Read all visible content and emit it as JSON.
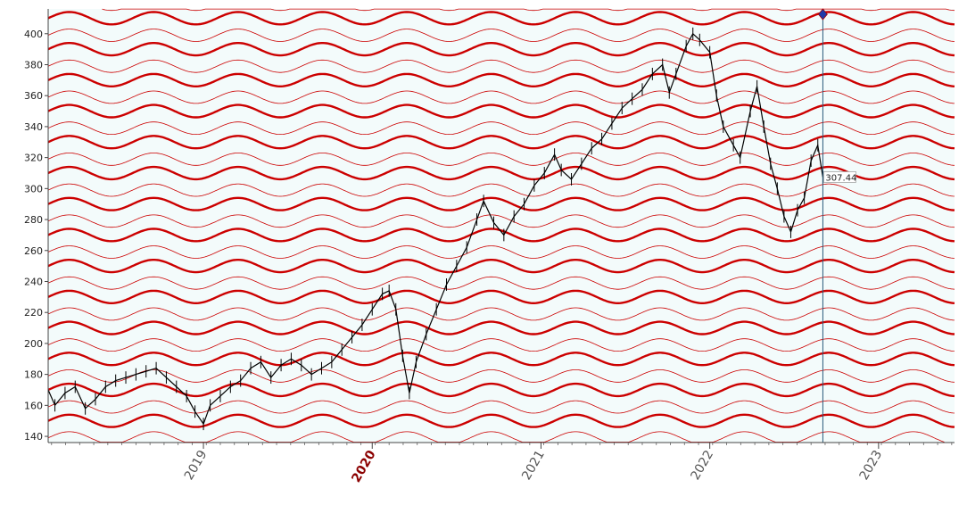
{
  "chart_data": {
    "type": "line",
    "title": "",
    "xlabel": "",
    "ylabel": "",
    "x_tick_labels": [
      "2019",
      "2020",
      "2021",
      "2022",
      "2023"
    ],
    "x_tick_highlight": "2020",
    "y_tick_labels": [
      "140",
      "160",
      "180",
      "200",
      "220",
      "240",
      "260",
      "280",
      "300",
      "320",
      "340",
      "360",
      "380",
      "400"
    ],
    "ylim": [
      136,
      416
    ],
    "xlim": [
      2018.08,
      2023.45
    ],
    "grid": false,
    "cursor": {
      "x": 2022.67,
      "value": 307.44,
      "label": "307.44"
    },
    "colors": {
      "background": "#f3fbfb",
      "price": "#000000",
      "wave": "#cc0000",
      "cursor": "#2a5a7a",
      "marker": "#1f3aa8"
    },
    "wave_overlay": {
      "description_levels_spacing": 20,
      "thick_every": 2,
      "amplitude": 4,
      "period_years": 0.5
    },
    "series": [
      {
        "values": [
          [
            2018.08,
            170
          ],
          [
            2018.12,
            160
          ],
          [
            2018.18,
            168
          ],
          [
            2018.24,
            172
          ],
          [
            2018.3,
            158
          ],
          [
            2018.36,
            164
          ],
          [
            2018.42,
            172
          ],
          [
            2018.48,
            176
          ],
          [
            2018.54,
            178
          ],
          [
            2018.6,
            180
          ],
          [
            2018.66,
            182
          ],
          [
            2018.72,
            184
          ],
          [
            2018.78,
            178
          ],
          [
            2018.84,
            172
          ],
          [
            2018.9,
            166
          ],
          [
            2018.95,
            156
          ],
          [
            2019.0,
            148
          ],
          [
            2019.04,
            160
          ],
          [
            2019.1,
            166
          ],
          [
            2019.16,
            172
          ],
          [
            2019.22,
            176
          ],
          [
            2019.28,
            184
          ],
          [
            2019.34,
            188
          ],
          [
            2019.4,
            178
          ],
          [
            2019.46,
            186
          ],
          [
            2019.52,
            190
          ],
          [
            2019.58,
            186
          ],
          [
            2019.64,
            180
          ],
          [
            2019.7,
            184
          ],
          [
            2019.76,
            188
          ],
          [
            2019.82,
            196
          ],
          [
            2019.88,
            204
          ],
          [
            2019.94,
            212
          ],
          [
            2020.0,
            222
          ],
          [
            2020.06,
            232
          ],
          [
            2020.1,
            234
          ],
          [
            2020.14,
            222
          ],
          [
            2020.18,
            192
          ],
          [
            2020.22,
            168
          ],
          [
            2020.26,
            188
          ],
          [
            2020.32,
            206
          ],
          [
            2020.38,
            222
          ],
          [
            2020.44,
            238
          ],
          [
            2020.5,
            250
          ],
          [
            2020.56,
            262
          ],
          [
            2020.62,
            280
          ],
          [
            2020.66,
            292
          ],
          [
            2020.72,
            278
          ],
          [
            2020.78,
            270
          ],
          [
            2020.84,
            282
          ],
          [
            2020.9,
            290
          ],
          [
            2020.96,
            302
          ],
          [
            2021.02,
            310
          ],
          [
            2021.08,
            322
          ],
          [
            2021.12,
            312
          ],
          [
            2021.18,
            306
          ],
          [
            2021.24,
            316
          ],
          [
            2021.3,
            326
          ],
          [
            2021.36,
            332
          ],
          [
            2021.42,
            342
          ],
          [
            2021.48,
            352
          ],
          [
            2021.54,
            358
          ],
          [
            2021.6,
            364
          ],
          [
            2021.66,
            374
          ],
          [
            2021.72,
            380
          ],
          [
            2021.76,
            362
          ],
          [
            2021.8,
            374
          ],
          [
            2021.86,
            392
          ],
          [
            2021.9,
            400
          ],
          [
            2021.94,
            396
          ],
          [
            2022.0,
            388
          ],
          [
            2022.04,
            360
          ],
          [
            2022.08,
            340
          ],
          [
            2022.14,
            328
          ],
          [
            2022.18,
            320
          ],
          [
            2022.24,
            350
          ],
          [
            2022.28,
            366
          ],
          [
            2022.32,
            340
          ],
          [
            2022.36,
            316
          ],
          [
            2022.4,
            300
          ],
          [
            2022.44,
            282
          ],
          [
            2022.48,
            272
          ],
          [
            2022.52,
            286
          ],
          [
            2022.56,
            294
          ],
          [
            2022.6,
            318
          ],
          [
            2022.64,
            328
          ],
          [
            2022.67,
            307.44
          ]
        ]
      }
    ]
  }
}
